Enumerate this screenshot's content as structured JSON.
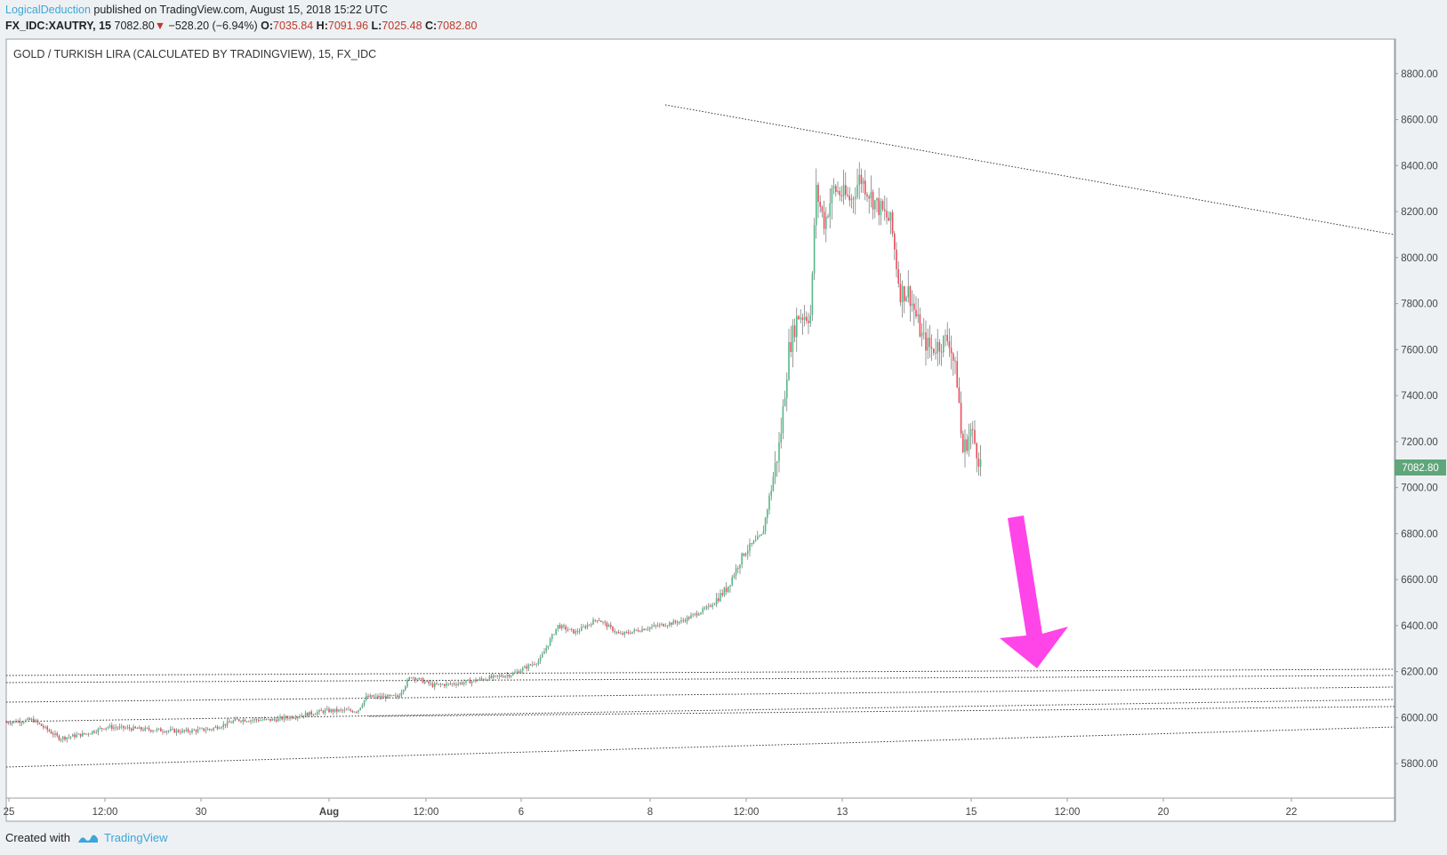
{
  "header": {
    "author": "LogicalDeduction",
    "published": "published on TradingView.com, August 15, 2018 15:22 UTC",
    "symbol": "FX_IDC:XAUTRY, 15",
    "last": "7082.80",
    "change": "−528.20 (−6.94%)",
    "open_label": "O:",
    "open": "7035.84",
    "high_label": "H:",
    "high": "7091.96",
    "low_label": "L:",
    "low": "7025.48",
    "close_label": "C:",
    "close": "7082.80",
    "down_arrow": "▼"
  },
  "footer": {
    "created_with": "Created with",
    "brand": "TradingView",
    "logo_icon": "tradingview-logo-icon"
  },
  "colors": {
    "up": "#53b987",
    "down": "#eb4d5c",
    "arrow": "#ff44e8",
    "price_tag": "#5fa67a",
    "accent": "#3ca6da"
  },
  "chart_data": {
    "type": "candlestick",
    "title": "GOLD / TURKISH LIRA (CALCULATED BY TRADINGVIEW), 15, FX_IDC",
    "y_axis": {
      "range": [
        5650,
        8950
      ],
      "ticks": [
        "8800.00",
        "8600.00",
        "8400.00",
        "8200.00",
        "8000.00",
        "7800.00",
        "7600.00",
        "7400.00",
        "7200.00",
        "7000.00",
        "6800.00",
        "6600.00",
        "6400.00",
        "6200.00",
        "6000.00",
        "5800.00"
      ],
      "position": "right"
    },
    "x_axis": {
      "tick_labels": [
        "25",
        "12:00",
        "30",
        "Aug",
        "12:00",
        "6",
        "8",
        "12:00",
        "13",
        "15",
        "12:00",
        "20",
        "22"
      ]
    },
    "last_price_tag": "7082.80",
    "price_path": [
      [
        0,
        5980
      ],
      [
        30,
        5990
      ],
      [
        60,
        5910
      ],
      [
        90,
        5930
      ],
      [
        112,
        5960
      ],
      [
        150,
        5950
      ],
      [
        200,
        5940
      ],
      [
        230,
        5950
      ],
      [
        260,
        5990
      ],
      [
        300,
        5990
      ],
      [
        330,
        6010
      ],
      [
        360,
        6030
      ],
      [
        395,
        6030
      ],
      [
        405,
        6090
      ],
      [
        440,
        6090
      ],
      [
        455,
        6180
      ],
      [
        480,
        6140
      ],
      [
        510,
        6150
      ],
      [
        540,
        6170
      ],
      [
        570,
        6190
      ],
      [
        600,
        6250
      ],
      [
        620,
        6400
      ],
      [
        640,
        6370
      ],
      [
        665,
        6430
      ],
      [
        690,
        6360
      ],
      [
        720,
        6390
      ],
      [
        760,
        6420
      ],
      [
        790,
        6480
      ],
      [
        810,
        6560
      ],
      [
        830,
        6720
      ],
      [
        850,
        6790
      ],
      [
        860,
        7000
      ],
      [
        870,
        7200
      ],
      [
        880,
        7600
      ],
      [
        890,
        7750
      ],
      [
        905,
        7750
      ],
      [
        910,
        8300
      ],
      [
        920,
        8150
      ],
      [
        930,
        8300
      ],
      [
        950,
        8250
      ],
      [
        960,
        8350
      ],
      [
        975,
        8250
      ],
      [
        995,
        8150
      ],
      [
        1005,
        7850
      ],
      [
        1015,
        7850
      ],
      [
        1030,
        7650
      ],
      [
        1040,
        7600
      ],
      [
        1060,
        7650
      ],
      [
        1070,
        7450
      ],
      [
        1075,
        7150
      ],
      [
        1085,
        7250
      ],
      [
        1097,
        7083
      ]
    ],
    "trend_lines": [
      {
        "style": "dotted",
        "from": [
          "Aug 8",
          8660
        ],
        "to": [
          "Aug 22+",
          8090
        ],
        "note": "descending resistance"
      },
      {
        "style": "dotted",
        "from": [
          "Jul 25",
          6170
        ],
        "to": [
          "Aug 22+",
          6210
        ]
      },
      {
        "style": "dotted",
        "from": [
          "Jul 25",
          6150
        ],
        "to": [
          "Aug 22+",
          6190
        ]
      },
      {
        "style": "dotted",
        "from": [
          "Jul 25",
          6060
        ],
        "to": [
          "Aug 22+",
          6140
        ]
      },
      {
        "style": "dotted",
        "from": [
          "Jul 25",
          5980
        ],
        "to": [
          "Aug 22+",
          6080
        ]
      },
      {
        "style": "dotted",
        "from": [
          "Aug",
          6000
        ],
        "to": [
          "Aug 22+",
          6060
        ]
      },
      {
        "style": "dotted",
        "from": [
          "Jul 25",
          5780
        ],
        "to": [
          "Aug 22+",
          5960
        ]
      }
    ],
    "annotation": {
      "type": "arrow",
      "direction": "down",
      "color": "#ff44e8",
      "target_price": 6200
    }
  }
}
